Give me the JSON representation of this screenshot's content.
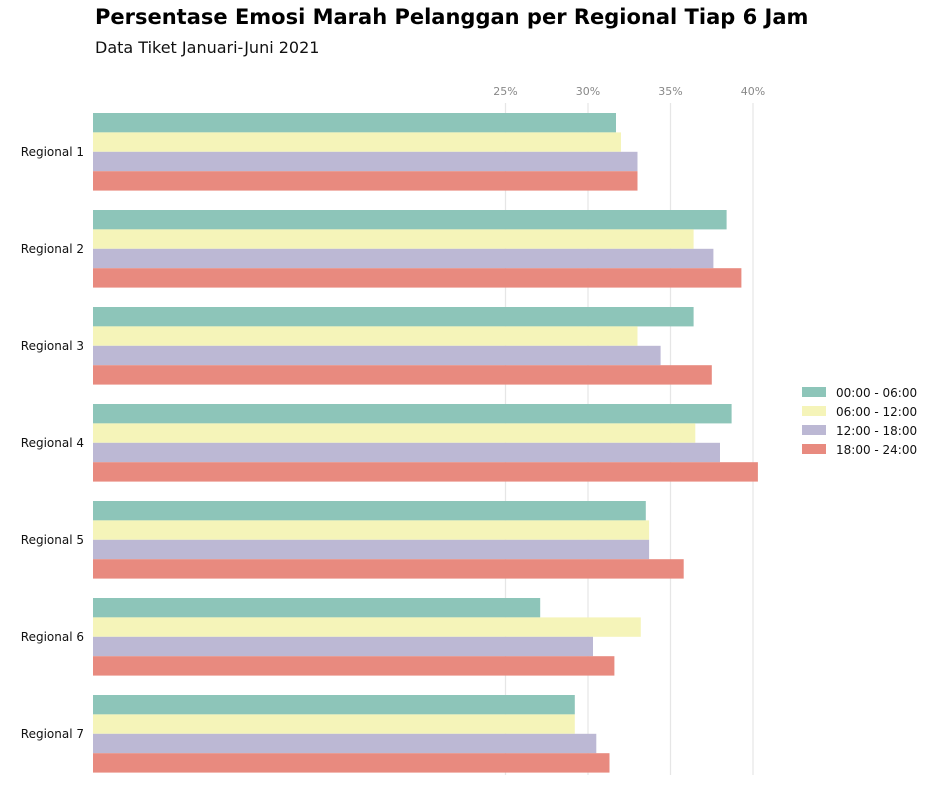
{
  "chart_data": {
    "type": "bar",
    "orientation": "horizontal",
    "title": "Persentase Emosi Marah Pelanggan per Regional Tiap 6 Jam",
    "subtitle": "Data Tiket Januari-Juni 2021",
    "xlabel": "",
    "ylabel": "",
    "categories": [
      "Regional 1",
      "Regional 2",
      "Regional 3",
      "Regional 4",
      "Regional 5",
      "Regional 6",
      "Regional 7"
    ],
    "xlim": [
      0,
      42
    ],
    "ticks": [
      25,
      30,
      35,
      40
    ],
    "tick_labels": [
      "25%",
      "30%",
      "35%",
      "40%"
    ],
    "grid": true,
    "legend_position": "right",
    "series": [
      {
        "name": "00:00 - 06:00",
        "color": "#8dc5b9",
        "values": [
          31.7,
          38.4,
          36.4,
          38.7,
          33.5,
          27.1,
          29.2
        ]
      },
      {
        "name": "06:00 - 12:00",
        "color": "#f5f4b9",
        "values": [
          32.0,
          36.4,
          33.0,
          36.5,
          33.7,
          33.2,
          29.2
        ]
      },
      {
        "name": "12:00 - 18:00",
        "color": "#bcb8d4",
        "values": [
          33.0,
          37.6,
          34.4,
          38.0,
          33.7,
          30.3,
          30.5
        ]
      },
      {
        "name": "18:00 - 24:00",
        "color": "#e88a7f",
        "values": [
          33.0,
          39.3,
          37.5,
          40.3,
          35.8,
          31.6,
          31.3
        ]
      }
    ]
  }
}
